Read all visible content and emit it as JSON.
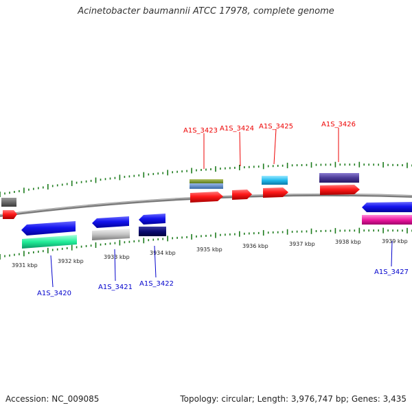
{
  "title": "Acinetobacter baumannii ATCC 17978, complete genome",
  "footer": {
    "accession": "Accession: NC_009085",
    "topology": "Topology: circular; Length: 3,976,747 bp; Genes: 3,435"
  },
  "kbp_labels": [
    "3931 kbp",
    "3932 kbp",
    "3933 kbp",
    "3934 kbp",
    "3935 kbp",
    "3936 kbp",
    "3937 kbp",
    "3938 kbp",
    "3939 kbp"
  ],
  "genes": [
    {
      "label": "A1S_3423",
      "color": "#ee0000"
    },
    {
      "label": "A1S_3424",
      "color": "#ee0000"
    },
    {
      "label": "A1S_3425",
      "color": "#ee0000"
    },
    {
      "label": "A1S_3426",
      "color": "#ee0000"
    },
    {
      "label": "A1S_3420",
      "color": "#0000cc"
    },
    {
      "label": "A1S_3421",
      "color": "#0000cc"
    },
    {
      "label": "A1S_3422",
      "color": "#0000cc"
    },
    {
      "label": "A1S_3427",
      "color": "#0000cc"
    }
  ],
  "colors": {
    "backbone": "#888888",
    "ticks": "#1a7a1a",
    "forward_strand": "#ff1111",
    "reverse_strand": "#1111ee"
  }
}
